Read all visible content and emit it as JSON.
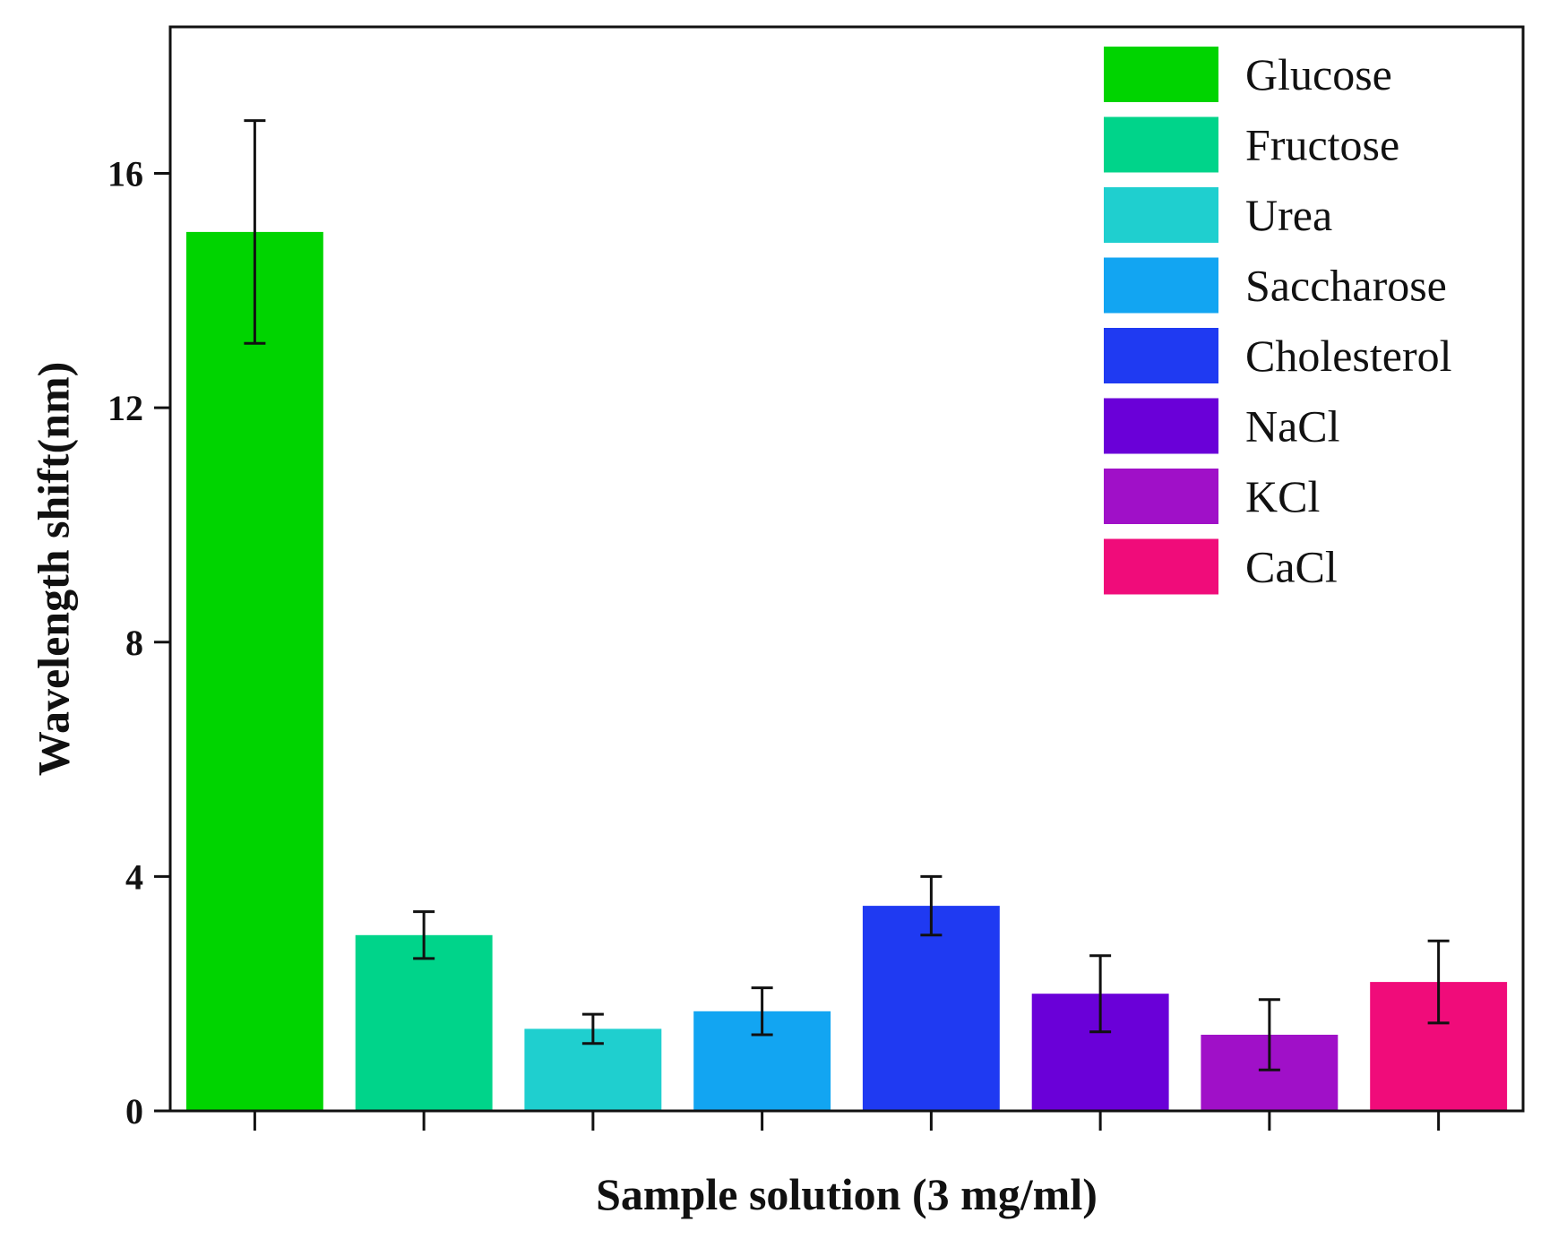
{
  "chart_data": {
    "type": "bar",
    "title": "",
    "xlabel": "Sample solution (3 mg/ml)",
    "ylabel": "Wavelength shift(nm)",
    "ylim": [
      0,
      18.5
    ],
    "yticks": [
      0,
      4,
      8,
      12,
      16
    ],
    "ytick_labels": [
      "0",
      "4",
      "8",
      "12",
      "16"
    ],
    "legend_position": "top-right",
    "categories": [
      "Glucose",
      "Fructose",
      "Urea",
      "Saccharose",
      "Cholesterol",
      "NaCl",
      "KCl",
      "CaCl"
    ],
    "values": [
      15.0,
      3.0,
      1.4,
      1.7,
      3.5,
      2.0,
      1.3,
      2.2
    ],
    "errors": [
      1.9,
      0.4,
      0.25,
      0.4,
      0.5,
      0.65,
      0.6,
      0.7
    ],
    "colors": [
      "#00d400",
      "#00d48a",
      "#1fcfcf",
      "#12a5f2",
      "#1f3af2",
      "#6a00d8",
      "#a010c8",
      "#f00c7a"
    ]
  }
}
